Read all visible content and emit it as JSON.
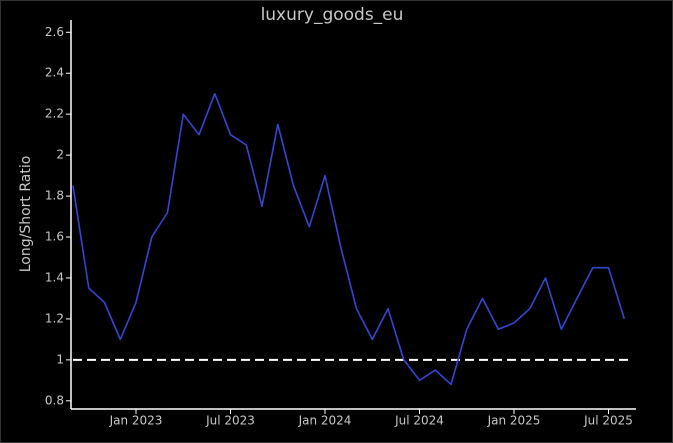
{
  "chart_data": {
    "type": "line",
    "title": "luxury_goods_eu",
    "ylabel": "Long/Short Ratio",
    "x": [
      "2022-09",
      "2022-10",
      "2022-11",
      "2022-12",
      "2023-01",
      "2023-02",
      "2023-03",
      "2023-04",
      "2023-05",
      "2023-06",
      "2023-07",
      "2023-08",
      "2023-09",
      "2023-10",
      "2023-11",
      "2023-12",
      "2024-01",
      "2024-02",
      "2024-03",
      "2024-04",
      "2024-05",
      "2024-06",
      "2024-07",
      "2024-08",
      "2024-09",
      "2024-10",
      "2024-11",
      "2024-12",
      "2025-01",
      "2025-02",
      "2025-03",
      "2025-04",
      "2025-05",
      "2025-06",
      "2025-07",
      "2025-08"
    ],
    "series": [
      {
        "name": "luxury_goods_eu",
        "color": "#3346d4",
        "values": [
          1.85,
          1.35,
          1.28,
          1.1,
          1.28,
          1.6,
          1.72,
          2.2,
          2.1,
          2.3,
          2.1,
          2.05,
          1.75,
          2.15,
          1.85,
          1.65,
          1.9,
          1.55,
          1.25,
          1.1,
          1.25,
          1.0,
          0.9,
          0.95,
          0.88,
          1.15,
          1.3,
          1.15,
          1.18,
          1.25,
          1.4,
          1.15,
          1.3,
          1.45,
          1.45,
          1.2
        ]
      }
    ],
    "xlim": [
      "2022-09",
      "2025-09"
    ],
    "xticks": [
      {
        "value": "2023-01",
        "label": "Jan 2023"
      },
      {
        "value": "2023-07",
        "label": "Jul 2023"
      },
      {
        "value": "2024-01",
        "label": "Jan 2024"
      },
      {
        "value": "2024-07",
        "label": "Jul 2024"
      },
      {
        "value": "2025-01",
        "label": "Jan 2025"
      },
      {
        "value": "2025-07",
        "label": "Jul 2025"
      }
    ],
    "ylim": [
      0.76,
      2.66
    ],
    "yticks": [
      0.8,
      1,
      1.2,
      1.4,
      1.6,
      1.8,
      2,
      2.2,
      2.4,
      2.6
    ],
    "reference_line": {
      "value": 1,
      "color": "#ffffff",
      "style": "dashed"
    },
    "grid": false
  }
}
